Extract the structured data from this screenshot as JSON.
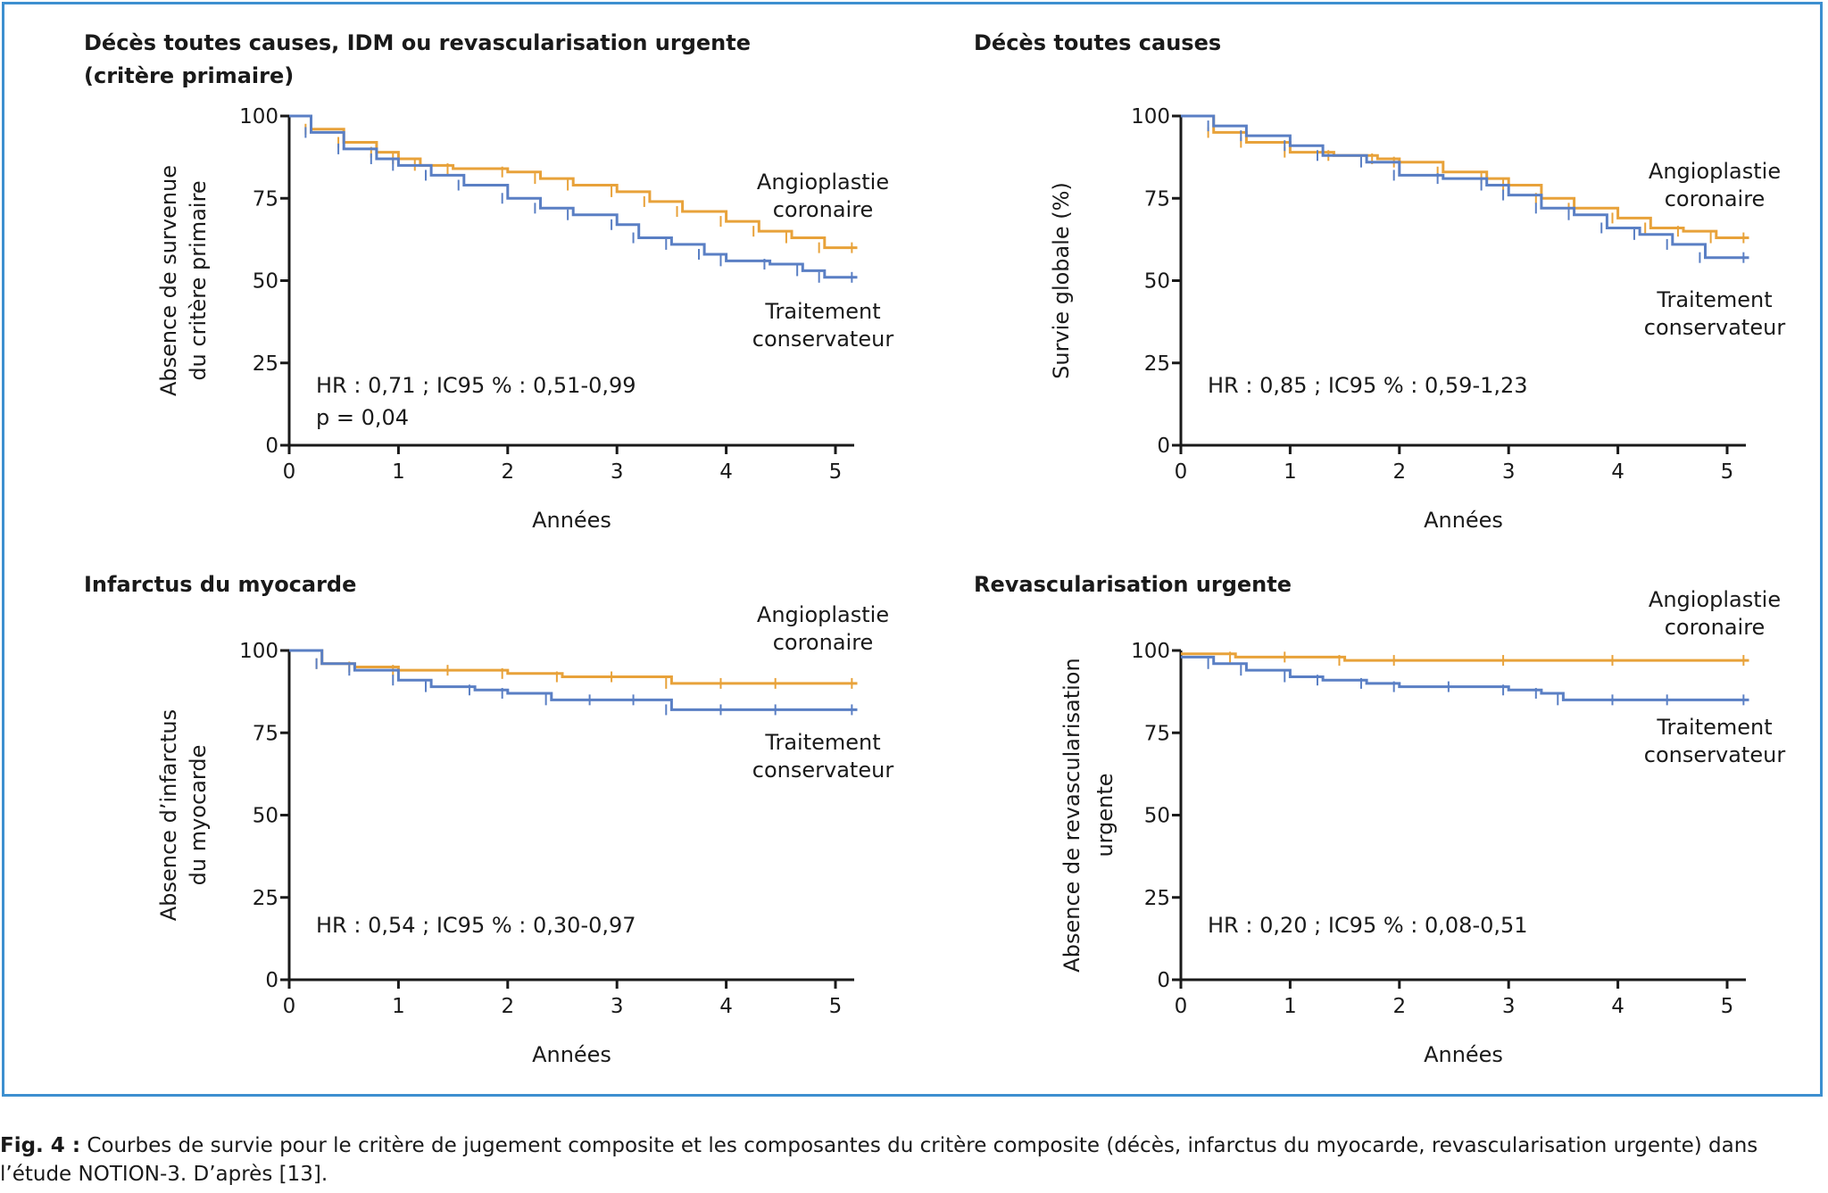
{
  "colors": {
    "frame": "#3d8fd0",
    "angioplastie": "#e8a23a",
    "conservateur": "#5a7fc4",
    "axis": "#1a1a1a"
  },
  "caption": {
    "label": "Fig. 4 :",
    "text": "Courbes de survie pour le critère de jugement composite et les composantes du critère composite (décès, infarctus du myocarde, revascularisation urgente) dans l’étude NOTION-3. D’après [13]."
  },
  "chart_data": [
    {
      "type": "line",
      "title": [
        "Décès toutes causes, IDM ou revascularisation urgente",
        "(critère primaire)"
      ],
      "ylabel": [
        "Absence de survenue",
        "du critère primaire"
      ],
      "xlabel": "Années",
      "xlim": [
        0,
        5.2
      ],
      "ylim": [
        0,
        100
      ],
      "xticks": [
        "0",
        "1",
        "2",
        "3",
        "4",
        "5"
      ],
      "yticks": [
        "0",
        "25",
        "50",
        "75",
        "100"
      ],
      "annotations": [
        "HR : 0,71 ; IC95 % : 0,51-0,99",
        "p = 0,04"
      ],
      "series": [
        {
          "name": [
            "Angioplastie",
            "coronaire"
          ],
          "color": "#e8a23a",
          "x": [
            0,
            0.2,
            0.5,
            0.8,
            1.0,
            1.2,
            1.5,
            2.0,
            2.3,
            2.6,
            3.0,
            3.3,
            3.6,
            4.0,
            4.3,
            4.6,
            4.9,
            5.2
          ],
          "y": [
            100,
            96,
            92,
            89,
            87,
            85,
            84,
            83,
            81,
            79,
            77,
            74,
            71,
            68,
            65,
            63,
            60,
            60
          ]
        },
        {
          "name": [
            "Traitement",
            "conservateur"
          ],
          "color": "#5a7fc4",
          "x": [
            0,
            0.2,
            0.5,
            0.8,
            1.0,
            1.3,
            1.6,
            2.0,
            2.3,
            2.6,
            3.0,
            3.2,
            3.5,
            3.8,
            4.0,
            4.4,
            4.7,
            4.9,
            5.2
          ],
          "y": [
            100,
            95,
            90,
            87,
            85,
            82,
            79,
            75,
            72,
            70,
            67,
            63,
            61,
            58,
            56,
            55,
            53,
            51,
            51
          ]
        }
      ]
    },
    {
      "type": "line",
      "title": [
        "Décès toutes causes"
      ],
      "ylabel": [
        "Survie globale (%)"
      ],
      "xlabel": "Années",
      "xlim": [
        0,
        5.2
      ],
      "ylim": [
        0,
        100
      ],
      "xticks": [
        "0",
        "1",
        "2",
        "3",
        "4",
        "5"
      ],
      "yticks": [
        "0",
        "25",
        "50",
        "75",
        "100"
      ],
      "annotations": [
        "HR : 0,85 ; IC95 % : 0,59-1,23"
      ],
      "series": [
        {
          "name": [
            "Angioplastie",
            "coronaire"
          ],
          "color": "#e8a23a",
          "x": [
            0,
            0.3,
            0.6,
            1.0,
            1.4,
            1.8,
            2.0,
            2.4,
            2.8,
            3.0,
            3.3,
            3.6,
            4.0,
            4.3,
            4.6,
            4.9,
            5.2
          ],
          "y": [
            100,
            95,
            92,
            89,
            88,
            87,
            86,
            83,
            81,
            79,
            75,
            72,
            69,
            66,
            65,
            63,
            63
          ]
        },
        {
          "name": [
            "Traitement",
            "conservateur"
          ],
          "color": "#5a7fc4",
          "x": [
            0,
            0.3,
            0.6,
            1.0,
            1.3,
            1.7,
            2.0,
            2.4,
            2.8,
            3.0,
            3.3,
            3.6,
            3.9,
            4.2,
            4.5,
            4.8,
            5.2
          ],
          "y": [
            100,
            97,
            94,
            91,
            88,
            86,
            82,
            81,
            79,
            76,
            72,
            70,
            66,
            64,
            61,
            57,
            57
          ]
        }
      ]
    },
    {
      "type": "line",
      "title": [
        "Infarctus du myocarde"
      ],
      "ylabel": [
        "Absence d’infarctus",
        "du myocarde"
      ],
      "xlabel": "Années",
      "xlim": [
        0,
        5.2
      ],
      "ylim": [
        0,
        100
      ],
      "xticks": [
        "0",
        "1",
        "2",
        "3",
        "4",
        "5"
      ],
      "yticks": [
        "0",
        "25",
        "50",
        "75",
        "100"
      ],
      "annotations": [
        "HR : 0,54 ; IC95 % : 0,30-0,97"
      ],
      "series": [
        {
          "name": [
            "Angioplastie",
            "coronaire"
          ],
          "color": "#e8a23a",
          "x": [
            0,
            0.3,
            0.6,
            1.0,
            1.5,
            2.0,
            2.5,
            3.0,
            3.5,
            4.0,
            4.5,
            5.2
          ],
          "y": [
            100,
            96,
            95,
            94,
            94,
            93,
            92,
            92,
            90,
            90,
            90,
            90
          ]
        },
        {
          "name": [
            "Traitement",
            "conservateur"
          ],
          "color": "#5a7fc4",
          "x": [
            0,
            0.3,
            0.6,
            1.0,
            1.3,
            1.7,
            2.0,
            2.4,
            2.8,
            3.2,
            3.5,
            4.0,
            4.5,
            5.2
          ],
          "y": [
            100,
            96,
            94,
            91,
            89,
            88,
            87,
            85,
            85,
            85,
            82,
            82,
            82,
            82
          ]
        }
      ]
    },
    {
      "type": "line",
      "title": [
        "Revascularisation urgente"
      ],
      "ylabel": [
        "Absence de revascularisation",
        "urgente"
      ],
      "xlabel": "Années",
      "xlim": [
        0,
        5.2
      ],
      "ylim": [
        0,
        100
      ],
      "xticks": [
        "0",
        "1",
        "2",
        "3",
        "4",
        "5"
      ],
      "yticks": [
        "0",
        "25",
        "50",
        "75",
        "100"
      ],
      "annotations": [
        "HR : 0,20 ; IC95 % : 0,08-0,51"
      ],
      "series": [
        {
          "name": [
            "Angioplastie",
            "coronaire"
          ],
          "color": "#e8a23a",
          "x": [
            0,
            0.5,
            1.0,
            1.5,
            2.0,
            3.0,
            4.0,
            5.2
          ],
          "y": [
            99,
            98,
            98,
            97,
            97,
            97,
            97,
            97
          ]
        },
        {
          "name": [
            "Traitement",
            "conservateur"
          ],
          "color": "#5a7fc4",
          "x": [
            0,
            0.3,
            0.6,
            1.0,
            1.3,
            1.7,
            2.0,
            2.5,
            3.0,
            3.3,
            3.5,
            4.0,
            4.5,
            5.2
          ],
          "y": [
            98,
            96,
            94,
            92,
            91,
            90,
            89,
            89,
            88,
            87,
            85,
            85,
            85,
            85
          ]
        }
      ]
    }
  ]
}
